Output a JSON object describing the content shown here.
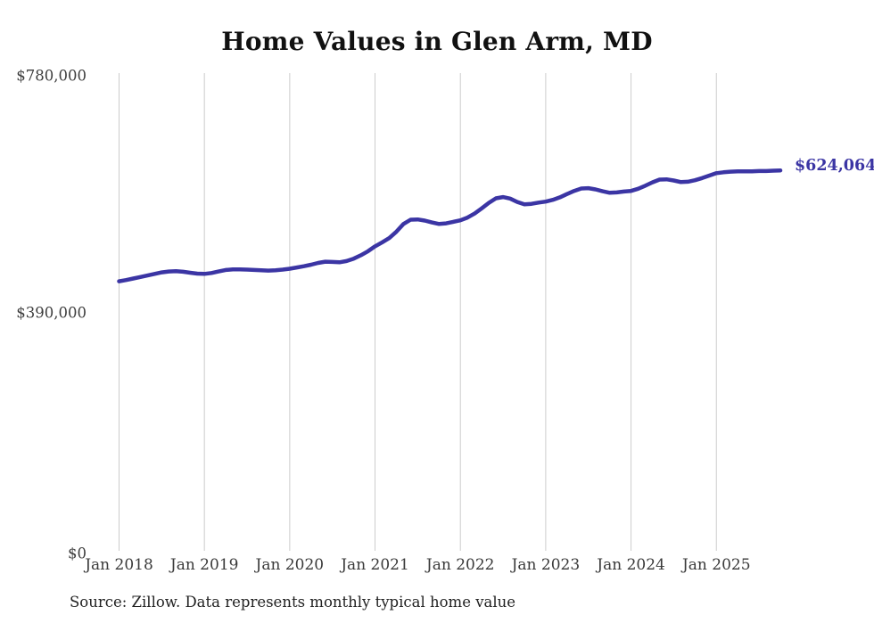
{
  "chart_data": {
    "type": "line",
    "title": "Home Values in Glen Arm, MD",
    "source": "Source: Zillow. Data represents monthly typical home value",
    "end_label": "$624,064",
    "latest_value": 624064,
    "line_color": "#3b35a4",
    "grid_color": "#cccccc",
    "axis_text_color": "#3a3a3a",
    "title_color": "#111111",
    "grid": "vertical-januaries-only",
    "legend": "none",
    "ylim": [
      0,
      780000
    ],
    "y_ticks": [
      0,
      390000,
      780000
    ],
    "y_tick_labels": [
      "$0",
      "$390,000",
      "$780,000"
    ],
    "x_tick_labels": [
      "Jan 2018",
      "Jan 2019",
      "Jan 2020",
      "Jan 2021",
      "Jan 2022",
      "Jan 2023",
      "Jan 2024",
      "Jan 2025"
    ],
    "series": [
      {
        "name": "Typical home value",
        "frequency": "monthly",
        "start": "Jan 2018",
        "end": "Oct 2025",
        "values": [
          443000,
          445000,
          447500,
          450000,
          452500,
          455000,
          457500,
          459000,
          459500,
          458500,
          457000,
          455500,
          455000,
          456500,
          459000,
          461500,
          462500,
          462500,
          462000,
          461500,
          461000,
          460500,
          461000,
          462000,
          463500,
          465500,
          467500,
          470000,
          473000,
          475000,
          474500,
          474000,
          476000,
          480000,
          485500,
          492000,
          500000,
          506500,
          513500,
          524000,
          536500,
          543500,
          544000,
          542000,
          539000,
          536500,
          537500,
          540000,
          542500,
          547000,
          553500,
          562000,
          571000,
          578500,
          580500,
          578000,
          572500,
          568500,
          569500,
          571500,
          573000,
          576000,
          580000,
          585500,
          590500,
          594500,
          595000,
          593000,
          590000,
          587500,
          588000,
          589500,
          590500,
          594000,
          599000,
          604500,
          609000,
          609500,
          607500,
          605000,
          605500,
          608000,
          611500,
          615500,
          619500,
          621000,
          622000,
          622500,
          622500,
          622500,
          623000,
          623000,
          623500,
          624064
        ]
      }
    ]
  }
}
